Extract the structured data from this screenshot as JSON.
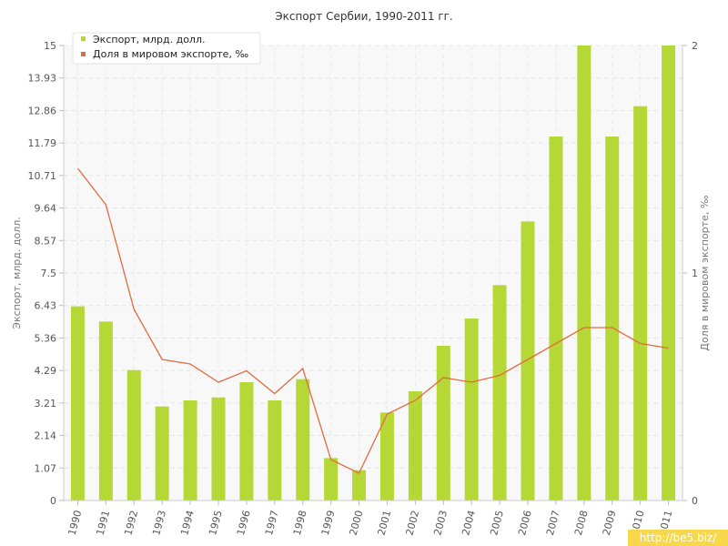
{
  "chart_data": {
    "type": "bar",
    "title": "Экспорт Сербии, 1990-2011 гг.",
    "ylabel": "Экспорт, млрд. долл.",
    "y2label": "Доля в мировом экспорте, ‰",
    "ylim": [
      0,
      15
    ],
    "y2lim": [
      0,
      2
    ],
    "yticks": [
      "0",
      "1.07",
      "2.14",
      "3.21",
      "4.29",
      "5.36",
      "6.43",
      "7.5",
      "8.57",
      "9.64",
      "10.71",
      "11.79",
      "12.86",
      "13.93",
      "15"
    ],
    "y2ticks": [
      "0",
      "1",
      "2"
    ],
    "grid": true,
    "legend_position": "top-left",
    "categories": [
      "1990",
      "1991",
      "1992",
      "1993",
      "1994",
      "1995",
      "1996",
      "1997",
      "1998",
      "1999",
      "2000",
      "2001",
      "2002",
      "2003",
      "2004",
      "2005",
      "2006",
      "2007",
      "2008",
      "2009",
      "2010",
      "2011"
    ],
    "series": [
      {
        "name": "Экспорт, млрд. долл.",
        "type": "bar",
        "axis": "left",
        "color": "#b5d836",
        "values": [
          6.4,
          5.9,
          4.3,
          3.1,
          3.3,
          3.4,
          3.9,
          3.3,
          4.0,
          1.4,
          1.0,
          2.9,
          3.6,
          5.1,
          6.0,
          7.1,
          9.2,
          12.0,
          15.0,
          12.0,
          13.0,
          15.0
        ]
      },
      {
        "name": "Доля в мировом экспорте, ‰",
        "type": "line",
        "axis": "right",
        "color": "#e36a3f",
        "values": [
          1.46,
          1.3,
          0.84,
          0.62,
          0.6,
          0.52,
          0.57,
          0.47,
          0.58,
          0.18,
          0.12,
          0.38,
          0.44,
          0.54,
          0.52,
          0.55,
          0.62,
          0.69,
          0.76,
          0.76,
          0.69,
          0.67
        ]
      }
    ]
  },
  "watermark": "http://be5.biz/"
}
